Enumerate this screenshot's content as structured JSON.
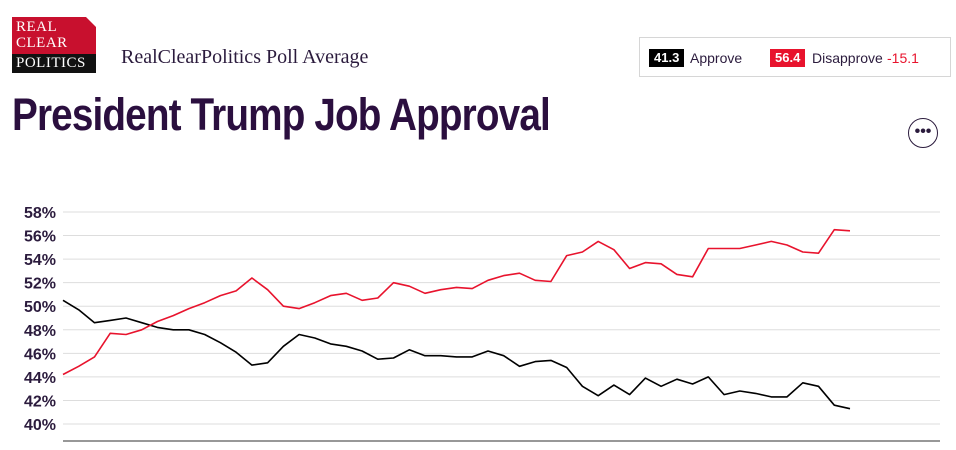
{
  "logo": {
    "line1": "REAL",
    "line2": "CLEAR",
    "line3": "POLITICS"
  },
  "header": {
    "subtitle": "RealClearPolitics Poll Average",
    "title": "President Trump Job Approval"
  },
  "summary": {
    "approve_value": "41.3",
    "approve_label": "Approve",
    "disapprove_value": "56.4",
    "disapprove_label": "Disapprove",
    "spread": "-15.1"
  },
  "colors": {
    "approve": "#000000",
    "disapprove": "#e8132d",
    "text": "#2b1b3d",
    "grid": "#dddddd"
  },
  "more_button": {
    "label": "•••",
    "icon": "more-options-icon"
  },
  "chart_data": {
    "type": "line",
    "title": "President Trump Job Approval",
    "ylabel": "",
    "xlabel": "",
    "ylim": [
      39.5,
      58.3
    ],
    "yticks": [
      40,
      42,
      44,
      46,
      48,
      50,
      52,
      54,
      56,
      58
    ],
    "ytick_labels": [
      "40%",
      "42%",
      "44%",
      "46%",
      "48%",
      "50%",
      "52%",
      "54%",
      "56%",
      "58%"
    ],
    "x": [
      0,
      2,
      4,
      6,
      8,
      10,
      12,
      14,
      16,
      18,
      20,
      22,
      24,
      26,
      28,
      30,
      32,
      34,
      36,
      38,
      40,
      42,
      44,
      46,
      48,
      50,
      52,
      54,
      56,
      58,
      60,
      62,
      64,
      66,
      68,
      70,
      72,
      74,
      76,
      78,
      80,
      82,
      84,
      86,
      88,
      90,
      92,
      94,
      96,
      98,
      100
    ],
    "series": [
      {
        "name": "Approve",
        "values": [
          50.5,
          49.7,
          48.6,
          48.8,
          49.0,
          48.6,
          48.2,
          48.0,
          48.0,
          47.6,
          46.9,
          46.1,
          45.0,
          45.2,
          46.6,
          47.6,
          47.3,
          46.8,
          46.6,
          46.2,
          45.5,
          45.6,
          46.3,
          45.8,
          45.8,
          45.7,
          45.7,
          46.2,
          45.8,
          44.9,
          45.3,
          45.4,
          44.8,
          43.2,
          42.4,
          43.3,
          42.5,
          43.9,
          43.2,
          43.8,
          43.4,
          44.0,
          42.5,
          42.8,
          42.6,
          42.3,
          42.3,
          43.5,
          43.2,
          41.6,
          41.3
        ]
      },
      {
        "name": "Disapprove",
        "values": [
          44.2,
          44.9,
          45.7,
          47.7,
          47.6,
          48.0,
          48.7,
          49.2,
          49.8,
          50.3,
          50.9,
          51.3,
          52.4,
          51.4,
          50.0,
          49.8,
          50.3,
          50.9,
          51.1,
          50.5,
          50.7,
          52.0,
          51.7,
          51.1,
          51.4,
          51.6,
          51.5,
          52.2,
          52.6,
          52.8,
          52.2,
          52.1,
          54.3,
          54.6,
          55.5,
          54.8,
          53.2,
          53.7,
          53.6,
          52.7,
          52.5,
          54.9,
          54.9,
          54.9,
          55.2,
          55.5,
          55.2,
          54.6,
          54.5,
          56.5,
          56.4
        ]
      }
    ]
  }
}
